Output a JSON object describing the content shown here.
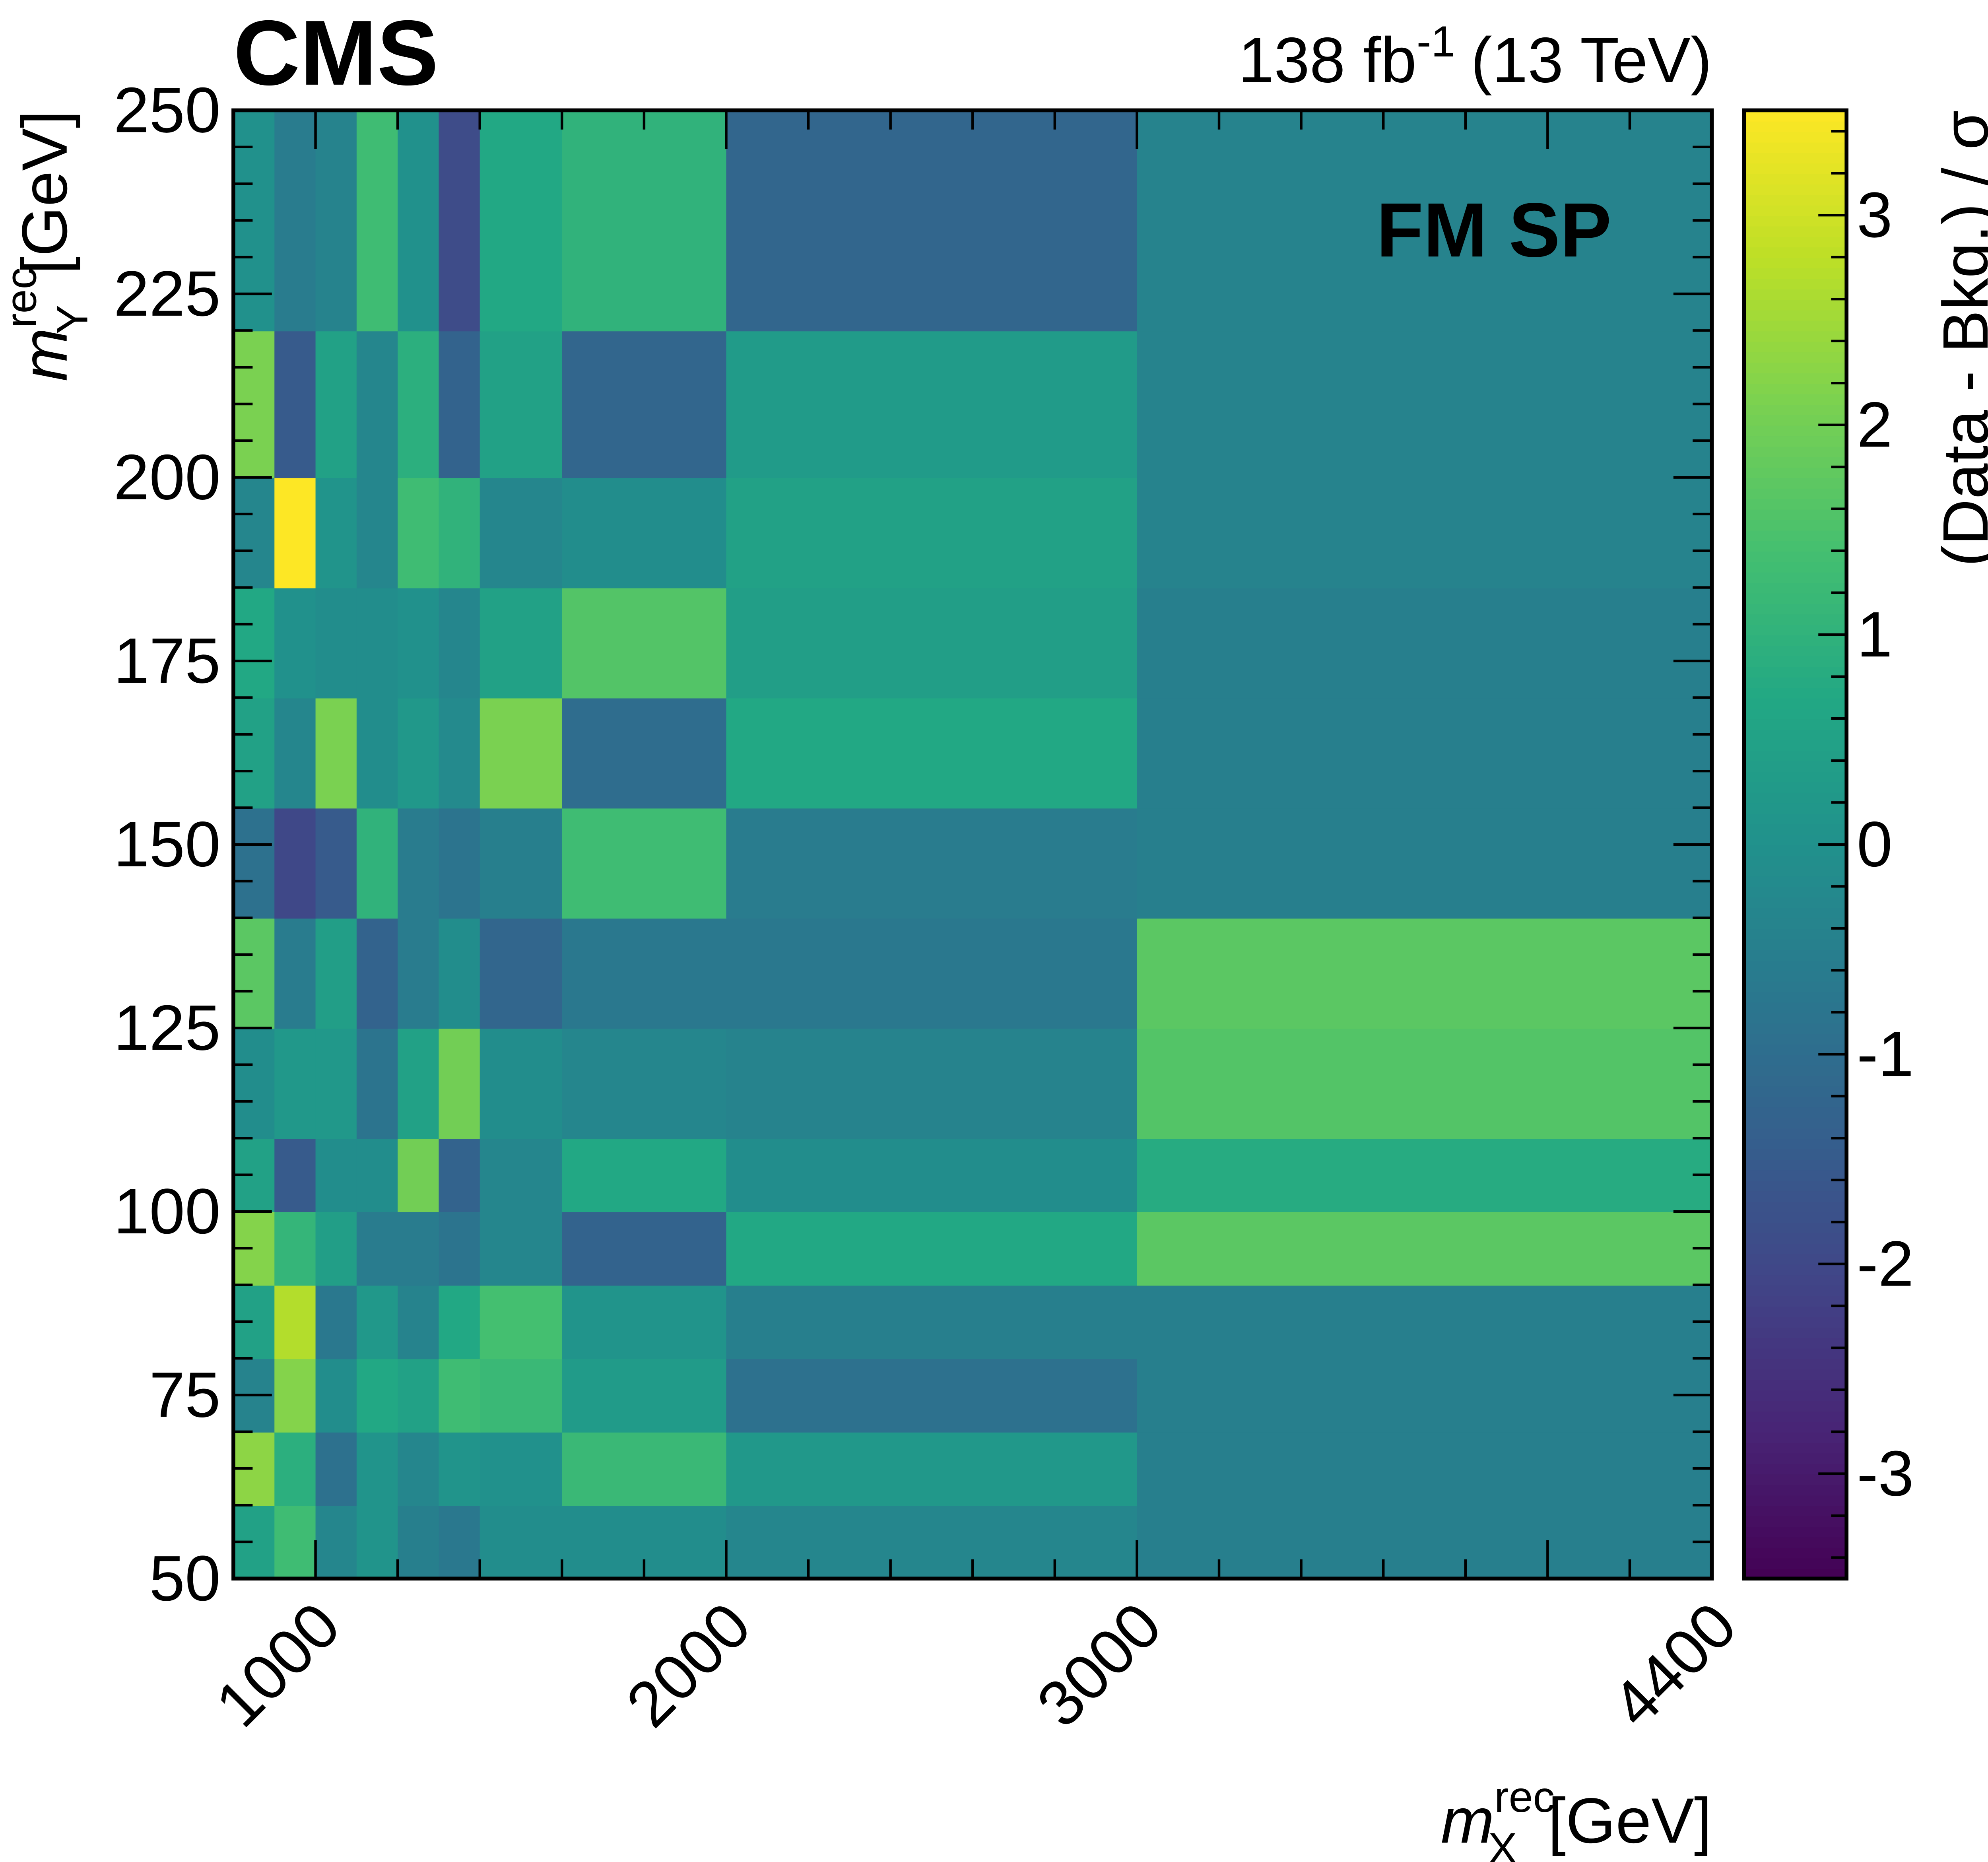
{
  "chart_data": {
    "type": "heatmap",
    "experiment_label": "CMS",
    "lumi_label": "138 fb",
    "lumi_exponent": "-1",
    "energy_label": "(13 TeV)",
    "annotation": "FM SP",
    "xlabel": {
      "symbol": "m",
      "sup": "rec",
      "sub": "X",
      "unit": "[GeV]"
    },
    "ylabel": {
      "symbol": "m",
      "sup": "rec",
      "sub": "Y",
      "unit": "[GeV]"
    },
    "colorbar_label": "(Data - Bkg.) / σ",
    "colormap": "viridis",
    "zlim": [
      -3.5,
      3.5
    ],
    "xlim": [
      800,
      4400
    ],
    "ylim": [
      50,
      250
    ],
    "x_ticks": [
      "1000",
      "2000",
      "3000",
      "4400"
    ],
    "x_tick_values": [
      1000,
      2000,
      3000,
      4400
    ],
    "y_ticks": [
      "50",
      "75",
      "100",
      "125",
      "150",
      "175",
      "200",
      "225",
      "250"
    ],
    "y_tick_values": [
      50,
      75,
      100,
      125,
      150,
      175,
      200,
      225,
      250
    ],
    "z_ticks": [
      "-3",
      "-2",
      "-1",
      "0",
      "1",
      "2",
      "3"
    ],
    "z_tick_values": [
      -3,
      -2,
      -1,
      0,
      1,
      2,
      3
    ],
    "x_edges": [
      800,
      900,
      1000,
      1100,
      1200,
      1300,
      1400,
      1600,
      2000,
      3000,
      4400
    ],
    "y_edges": [
      50,
      60,
      70,
      80,
      90,
      100,
      110,
      125,
      140,
      155,
      170,
      185,
      200,
      220,
      250
    ],
    "z": [
      [
        0.5,
        1.3,
        -0.3,
        0.1,
        -0.5,
        -0.7,
        -0.1,
        -0.1,
        -0.3,
        -0.5
      ],
      [
        2.3,
        0.9,
        -0.9,
        0.1,
        -0.3,
        0.1,
        0.0,
        1.2,
        0.2,
        -0.5
      ],
      [
        -0.4,
        2.2,
        -0.1,
        0.7,
        0.5,
        1.3,
        1.2,
        0.3,
        -0.9,
        -0.5
      ],
      [
        0.5,
        2.7,
        -0.7,
        0.2,
        -0.4,
        0.7,
        1.4,
        0.1,
        -0.5,
        -0.5
      ],
      [
        2.2,
        1.1,
        0.4,
        -0.6,
        -0.6,
        -0.8,
        -0.3,
        -1.3,
        0.7,
        1.7
      ],
      [
        0.5,
        -1.5,
        -0.1,
        -0.1,
        2.0,
        -1.3,
        -0.3,
        0.7,
        -0.1,
        0.8
      ],
      [
        -0.1,
        0.2,
        0.2,
        -0.8,
        0.5,
        2.0,
        -0.1,
        -0.3,
        -0.4,
        1.6
      ],
      [
        1.7,
        -0.6,
        0.4,
        -1.3,
        -0.6,
        -0.1,
        -1.2,
        -0.7,
        -0.7,
        1.7
      ],
      [
        -0.9,
        -2.0,
        -1.5,
        1.0,
        -0.6,
        -0.8,
        -0.5,
        1.3,
        -0.6,
        -0.5
      ],
      [
        0.5,
        -0.3,
        2.1,
        -0.1,
        0.2,
        -0.2,
        2.1,
        -1.0,
        0.7,
        -0.5
      ],
      [
        0.7,
        0.0,
        -0.1,
        -0.1,
        0.0,
        -0.3,
        0.5,
        1.6,
        0.4,
        -0.5
      ],
      [
        -0.3,
        3.5,
        0.1,
        -0.3,
        1.3,
        1.0,
        -0.3,
        -0.1,
        0.5,
        -0.4
      ],
      [
        2.1,
        -1.5,
        0.5,
        -0.3,
        0.9,
        -1.3,
        0.5,
        -1.2,
        0.3,
        -0.4
      ],
      [
        0.0,
        -0.6,
        -0.4,
        1.3,
        0.0,
        -1.9,
        0.7,
        1.0,
        -1.2,
        -0.4
      ]
    ]
  }
}
